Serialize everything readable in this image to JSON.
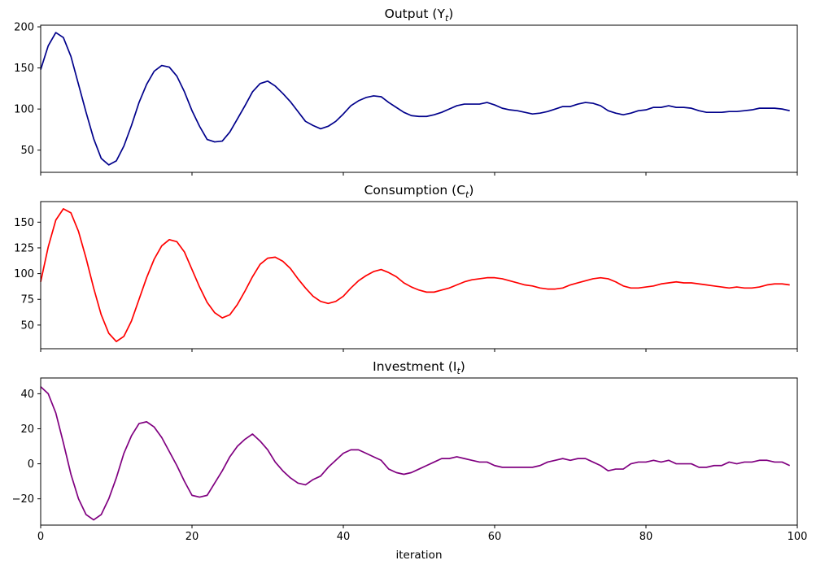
{
  "chart_data": [
    {
      "type": "line",
      "title": "Output (Y",
      "title_sub": "t",
      "title_close": ")",
      "xlabel": "",
      "ylabel": "",
      "xlim": [
        0,
        100
      ],
      "ylim": [
        23,
        202
      ],
      "yticks": [
        50,
        100,
        150,
        200
      ],
      "xticks": [
        0,
        20,
        40,
        60,
        80,
        100
      ],
      "show_xticklabels": false,
      "grid": false,
      "color": "#00008b",
      "x": [
        0,
        1,
        2,
        3,
        4,
        5,
        6,
        7,
        8,
        9,
        10,
        11,
        12,
        13,
        14,
        15,
        16,
        17,
        18,
        19,
        20,
        21,
        22,
        23,
        24,
        25,
        26,
        27,
        28,
        29,
        30,
        31,
        32,
        33,
        34,
        35,
        36,
        37,
        38,
        39,
        40,
        41,
        42,
        43,
        44,
        45,
        46,
        47,
        48,
        49,
        50,
        51,
        52,
        53,
        54,
        55,
        56,
        57,
        58,
        59,
        60,
        61,
        62,
        63,
        64,
        65,
        66,
        67,
        68,
        69,
        70,
        71,
        72,
        73,
        74,
        75,
        76,
        77,
        78,
        79,
        80,
        81,
        82,
        83,
        84,
        85,
        86,
        87,
        88,
        89,
        90,
        91,
        92,
        93,
        94,
        95,
        96,
        97,
        98,
        99
      ],
      "values": [
        148,
        177,
        193,
        187,
        164,
        130,
        96,
        64,
        40,
        32,
        37,
        55,
        80,
        108,
        130,
        146,
        153,
        151,
        140,
        121,
        98,
        79,
        63,
        60,
        61,
        72,
        88,
        104,
        121,
        131,
        134,
        128,
        119,
        109,
        97,
        85,
        80,
        76,
        79,
        85,
        94,
        104,
        110,
        114,
        116,
        115,
        108,
        102,
        96,
        92,
        91,
        91,
        93,
        96,
        100,
        104,
        106,
        106,
        106,
        108,
        105,
        101,
        99,
        98,
        96,
        94,
        95,
        97,
        100,
        103,
        103,
        106,
        108,
        107,
        104,
        98,
        95,
        93,
        95,
        98,
        99,
        102,
        102,
        104,
        102,
        102,
        101,
        98,
        96,
        96,
        96,
        97,
        97,
        98,
        99,
        101,
        101,
        101,
        100,
        98
      ]
    },
    {
      "type": "line",
      "title": "Consumption (C",
      "title_sub": "t",
      "title_close": ")",
      "xlabel": "",
      "ylabel": "",
      "xlim": [
        0,
        100
      ],
      "ylim": [
        27,
        170
      ],
      "yticks": [
        50,
        75,
        100,
        125,
        150
      ],
      "xticks": [
        0,
        20,
        40,
        60,
        80,
        100
      ],
      "show_xticklabels": false,
      "grid": false,
      "color": "#ff0000",
      "x": [
        0,
        1,
        2,
        3,
        4,
        5,
        6,
        7,
        8,
        9,
        10,
        11,
        12,
        13,
        14,
        15,
        16,
        17,
        18,
        19,
        20,
        21,
        22,
        23,
        24,
        25,
        26,
        27,
        28,
        29,
        30,
        31,
        32,
        33,
        34,
        35,
        36,
        37,
        38,
        39,
        40,
        41,
        42,
        43,
        44,
        45,
        46,
        47,
        48,
        49,
        50,
        51,
        52,
        53,
        54,
        55,
        56,
        57,
        58,
        59,
        60,
        61,
        62,
        63,
        64,
        65,
        66,
        67,
        68,
        69,
        70,
        71,
        72,
        73,
        74,
        75,
        76,
        77,
        78,
        79,
        80,
        81,
        82,
        83,
        84,
        85,
        86,
        87,
        88,
        89,
        90,
        91,
        92,
        93,
        94,
        95,
        96,
        97,
        98,
        99
      ],
      "values": [
        92,
        126,
        152,
        163,
        159,
        141,
        115,
        86,
        60,
        42,
        34,
        39,
        54,
        75,
        96,
        114,
        127,
        133,
        131,
        121,
        104,
        87,
        72,
        62,
        57,
        60,
        70,
        83,
        97,
        109,
        115,
        116,
        112,
        105,
        95,
        86,
        78,
        73,
        71,
        73,
        78,
        86,
        93,
        98,
        102,
        104,
        101,
        97,
        91,
        87,
        84,
        82,
        82,
        84,
        86,
        89,
        92,
        94,
        95,
        96,
        96,
        95,
        93,
        91,
        89,
        88,
        86,
        85,
        85,
        86,
        89,
        91,
        93,
        95,
        96,
        95,
        92,
        88,
        86,
        86,
        87,
        88,
        90,
        91,
        92,
        91,
        91,
        90,
        89,
        88,
        87,
        86,
        87,
        86,
        86,
        87,
        89,
        90,
        90,
        89
      ]
    },
    {
      "type": "line",
      "title": "Investment (I",
      "title_sub": "t",
      "title_close": ")",
      "xlabel": "iteration",
      "ylabel": "",
      "xlim": [
        0,
        100
      ],
      "ylim": [
        -35,
        49
      ],
      "yticks": [
        -20,
        0,
        20,
        40
      ],
      "xticks": [
        0,
        20,
        40,
        60,
        80,
        100
      ],
      "show_xticklabels": true,
      "grid": false,
      "color": "#800080",
      "x": [
        0,
        1,
        2,
        3,
        4,
        5,
        6,
        7,
        8,
        9,
        10,
        11,
        12,
        13,
        14,
        15,
        16,
        17,
        18,
        19,
        20,
        21,
        22,
        23,
        24,
        25,
        26,
        27,
        28,
        29,
        30,
        31,
        32,
        33,
        34,
        35,
        36,
        37,
        38,
        39,
        40,
        41,
        42,
        43,
        44,
        45,
        46,
        47,
        48,
        49,
        50,
        51,
        52,
        53,
        54,
        55,
        56,
        57,
        58,
        59,
        60,
        61,
        62,
        63,
        64,
        65,
        66,
        67,
        68,
        69,
        70,
        71,
        72,
        73,
        74,
        75,
        76,
        77,
        78,
        79,
        80,
        81,
        82,
        83,
        84,
        85,
        86,
        87,
        88,
        89,
        90,
        91,
        92,
        93,
        94,
        95,
        96,
        97,
        98,
        99
      ],
      "values": [
        44,
        40,
        29,
        12,
        -6,
        -20,
        -29,
        -32,
        -29,
        -20,
        -8,
        6,
        16,
        23,
        24,
        21,
        15,
        7,
        -1,
        -10,
        -18,
        -19,
        -18,
        -11,
        -4,
        4,
        10,
        14,
        17,
        13,
        8,
        1,
        -4,
        -8,
        -11,
        -12,
        -9,
        -7,
        -2,
        2,
        6,
        8,
        8,
        6,
        4,
        2,
        -3,
        -5,
        -6,
        -5,
        -3,
        -1,
        1,
        3,
        3,
        4,
        3,
        2,
        1,
        1,
        -1,
        -2,
        -2,
        -2,
        -2,
        -2,
        -1,
        1,
        2,
        3,
        2,
        3,
        3,
        1,
        -1,
        -4,
        -3,
        -3,
        0,
        1,
        1,
        2,
        1,
        2,
        0,
        0,
        0,
        -2,
        -2,
        -1,
        -1,
        1,
        0,
        1,
        1,
        2,
        2,
        1,
        1,
        -1
      ]
    }
  ]
}
